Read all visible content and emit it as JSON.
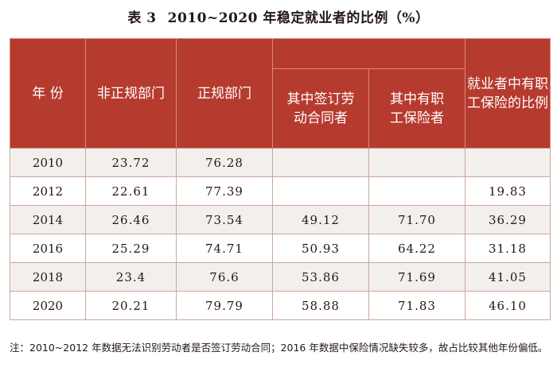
{
  "title": {
    "number": "表 3",
    "text": "2010~2020 年稳定就业者的比例（%）"
  },
  "headers": {
    "year": "年 份",
    "informal": "非正规部门",
    "formal": "正规部门",
    "signed": [
      "其中签订劳",
      "动合同者"
    ],
    "insured": [
      "其中有职",
      "工保险者"
    ],
    "insurance_ratio": [
      "就业者中有职",
      "工保险的比例"
    ]
  },
  "rows": [
    {
      "year": "2010",
      "informal": "23.72",
      "formal": "76.28",
      "signed": "",
      "insured": "",
      "ratio": ""
    },
    {
      "year": "2012",
      "informal": "22.61",
      "formal": "77.39",
      "signed": "",
      "insured": "",
      "ratio": "19.83"
    },
    {
      "year": "2014",
      "informal": "26.46",
      "formal": "73.54",
      "signed": "49.12",
      "insured": "71.70",
      "ratio": "36.29"
    },
    {
      "year": "2016",
      "informal": "25.29",
      "formal": "74.71",
      "signed": "50.93",
      "insured": "64.22",
      "ratio": "31.18"
    },
    {
      "year": "2018",
      "informal": "23.4",
      "formal": "76.6",
      "signed": "53.86",
      "insured": "71.69",
      "ratio": "41.05"
    },
    {
      "year": "2020",
      "informal": "20.21",
      "formal": "79.79",
      "signed": "58.88",
      "insured": "71.83",
      "ratio": "46.10"
    }
  ],
  "note": "注：2010~2012 年数据无法识别劳动者是否签订劳动合同；2016 年数据中保险情况缺失较多，故占比较其他年份偏低。"
}
